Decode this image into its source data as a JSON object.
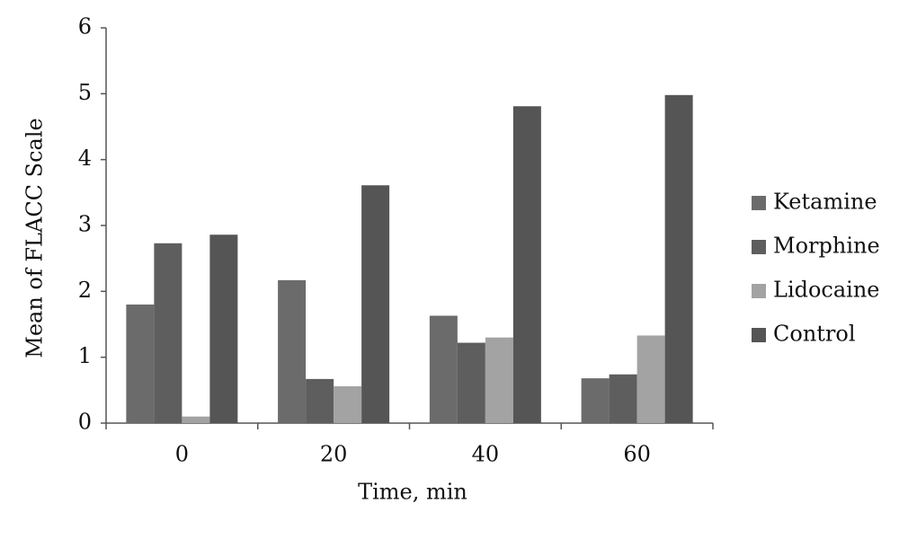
{
  "chart_data": {
    "type": "bar",
    "x_label": "Time, min",
    "y_label": "Mean of FLACC Scale",
    "categories": [
      "0",
      "20",
      "40",
      "60"
    ],
    "series": [
      {
        "name": "Ketamine",
        "color": "#6b6b6b",
        "values": [
          1.8,
          2.17,
          1.63,
          0.68
        ]
      },
      {
        "name": "Morphine",
        "color": "#5e5e5e",
        "values": [
          2.73,
          0.67,
          1.22,
          0.74
        ]
      },
      {
        "name": "Lidocaine",
        "color": "#a3a3a3",
        "values": [
          0.1,
          0.56,
          1.3,
          1.33
        ]
      },
      {
        "name": "Control",
        "color": "#555555",
        "values": [
          2.86,
          3.61,
          4.81,
          4.98
        ]
      }
    ],
    "ylim": [
      0,
      6
    ],
    "yticks": [
      0,
      1,
      2,
      3,
      4,
      5,
      6
    ],
    "legend": "right"
  }
}
